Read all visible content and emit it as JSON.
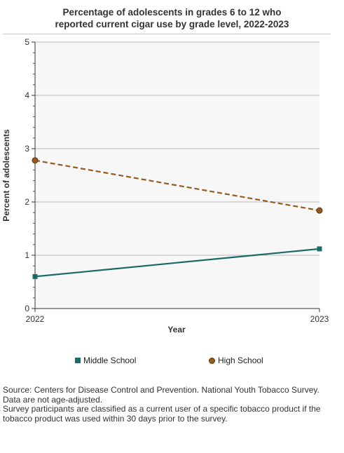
{
  "header": {
    "title_line1": "Percentage of adolescents in grades 6 to 12 who",
    "title_line2": "reported current cigar use by grade level, 2022-2023"
  },
  "chart_data": {
    "type": "line",
    "title": "Percentage of adolescents in grades 6 to 12 who reported current cigar use by grade level, 2022-2023",
    "xlabel": "Year",
    "ylabel": "Percent of adolescents",
    "x": [
      "2022",
      "2023"
    ],
    "ylim": [
      0,
      5
    ],
    "yticks": [
      0,
      1,
      2,
      3,
      4,
      5
    ],
    "grid": true,
    "legend_position": "bottom",
    "series": [
      {
        "name": "Middle School",
        "values": [
          0.6,
          1.12
        ],
        "color": "#1a6a66",
        "marker": "square",
        "line_style": "solid"
      },
      {
        "name": "High School",
        "values": [
          2.78,
          1.84
        ],
        "color": "#955a1f",
        "marker": "circle",
        "line_style": "dashed"
      }
    ]
  },
  "footer": {
    "source_line1": "Source: Centers for Disease Control and Prevention. National Youth Tobacco Survey.",
    "source_line2": "Data are not age-adjusted.",
    "source_line3": "Survey participants are classified as a current user of a specific tobacco product if the",
    "source_line4": "tobacco product was used within 30 days prior to the survey."
  }
}
